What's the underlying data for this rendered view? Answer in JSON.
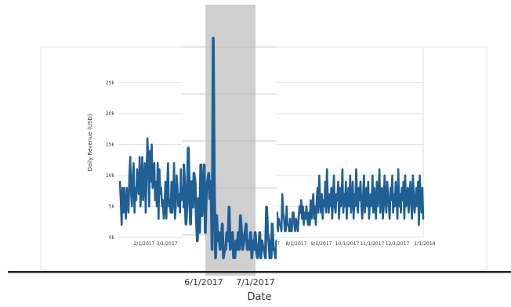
{
  "chart_data": {
    "type": "line",
    "ylabel": "Daily Revenue (USD)",
    "zoom_xlabel": "Date",
    "ylim": [
      0,
      28000
    ],
    "y_ticks": [
      "0k",
      "5k",
      "10k",
      "15k",
      "20k",
      "25k"
    ],
    "y_tick_values": [
      0,
      5000,
      10000,
      15000,
      20000,
      25000
    ],
    "x_tick_labels": [
      "2/1/2017",
      "3/1/2017",
      "7",
      "8/1/2017",
      "9/1/2017",
      "10/1/2017",
      "11/1/2017",
      "12/1/2017",
      "1/1/2018"
    ],
    "zoom_x_tick_labels": [
      "6/1/2017",
      "7/1/2017"
    ],
    "line_color": "#1f5f94",
    "highlight_color": "#cfcfcf",
    "series": [
      {
        "x_start": "2017-01-01",
        "values": [
          9000,
          6000,
          2000,
          8000,
          4000,
          8000,
          5000,
          3000,
          8000,
          6000,
          4000,
          10000,
          13000,
          7000,
          5000,
          10000,
          12000,
          4000,
          8000,
          6000,
          11000,
          9000,
          7000,
          13000,
          5000,
          8000,
          13000,
          6000,
          9000,
          12000,
          4000,
          10000,
          16000,
          12000,
          5000,
          14000,
          9000,
          15000,
          8000,
          10000,
          12000,
          6000,
          9000,
          5000,
          12000,
          3000,
          11000,
          7000,
          8000,
          5000,
          6000,
          3000,
          5000,
          9000,
          3000,
          8000,
          12000,
          5000,
          6000,
          4000,
          9000,
          4000,
          7000,
          12000,
          3000,
          5000,
          10000,
          8000,
          5000,
          7000,
          4000,
          11000,
          6000,
          7000,
          8000,
          9000,
          7000,
          12000,
          6000,
          9000,
          5000,
          14000,
          9000,
          6000,
          11000,
          4000,
          8000,
          6000,
          12000,
          4000,
          13000,
          9000,
          6000,
          10000,
          7000,
          11000,
          8000,
          12000,
          11000,
          3000,
          7000,
          10000,
          12000,
          4000,
          11000,
          2000,
          9000,
          6000,
          5000,
          9000,
          3000,
          8000,
          13000,
          14000,
          10000,
          7000,
          12000,
          9000,
          5000,
          8000,
          14000,
          9000,
          5000,
          10000,
          7000,
          11000,
          10000,
          6000,
          3000,
          8000,
          4000,
          12000,
          6000,
          9000,
          12000,
          4000,
          9000,
          10000,
          11000,
          8000,
          10000,
          2000,
          27000,
          9000,
          1000,
          6000,
          3000,
          4000,
          2000,
          3000,
          5000,
          1000,
          2000,
          2000,
          4000,
          3000,
          7000,
          2000,
          3000,
          4000,
          1000,
          1000,
          3000,
          2000,
          4000,
          2000,
          6000,
          4000,
          2000,
          3000,
          4000,
          5000,
          2000,
          3000,
          2000,
          4000,
          1000,
          3000,
          2000,
          4000,
          2000,
          1000,
          2000,
          4000,
          1000,
          3000,
          2000,
          2000,
          1000,
          7000,
          4000,
          3000,
          1000,
          1000,
          5000,
          2000,
          2000,
          1000,
          3000,
          1000,
          1000,
          4000,
          4000,
          2000,
          1000,
          3000,
          2000,
          1000,
          3000,
          5000,
          4000,
          6000,
          3000,
          5000,
          2000,
          4000,
          3000,
          5000,
          3000,
          2000,
          4000,
          2000,
          6000,
          3000,
          5000,
          7000,
          3000,
          5000,
          2000,
          6000,
          8000,
          4000,
          10000,
          6000,
          4000,
          7000,
          3000,
          6000,
          5000,
          9000,
          4000,
          11000,
          6000,
          4000,
          7000,
          5000,
          8000,
          3000,
          6000,
          10000,
          5000,
          4000,
          7000,
          6000,
          9000,
          3000,
          8000,
          5000,
          6000,
          11000,
          4000,
          7000,
          5000,
          9000,
          3000,
          6000,
          8000,
          5000,
          10000,
          4000,
          6000,
          9000,
          3000,
          7000,
          5000,
          11000,
          6000,
          4000,
          8000,
          6000,
          9000,
          5000,
          3000,
          7000,
          10000,
          4000,
          6000,
          8000,
          5000,
          9000,
          3000,
          6000,
          7000,
          5000,
          10000,
          4000,
          8000,
          6000,
          3000,
          9000,
          5000,
          7000,
          11000,
          4000,
          6000,
          8000,
          3000,
          5000,
          10000,
          6000,
          4000,
          9000,
          7000,
          5000,
          3000,
          8000,
          6000,
          10000,
          4000,
          7000,
          5000,
          9000,
          6000,
          3000,
          11000,
          5000,
          7000,
          4000,
          8000,
          6000,
          9000,
          3000,
          10000,
          5000,
          6000,
          8000,
          4000,
          7000,
          9000,
          5000,
          3000,
          10000,
          7000,
          4000,
          6000,
          8000,
          5000,
          9000,
          2000,
          10000,
          6000,
          4000,
          8000,
          3000
        ]
      }
    ]
  }
}
